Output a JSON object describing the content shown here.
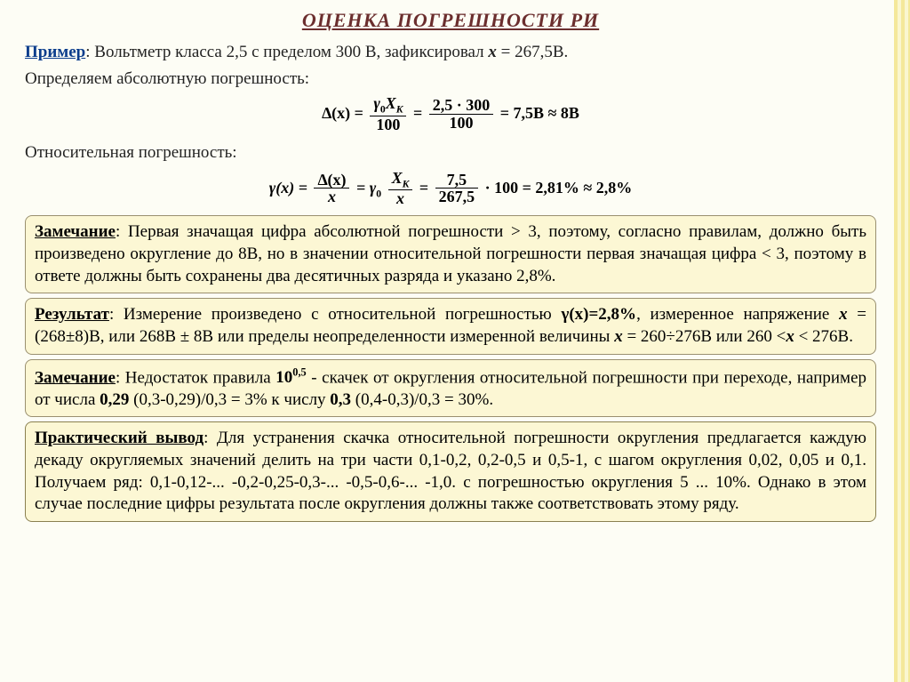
{
  "title": "ОЦЕНКА  ПОГРЕШНОСТИ РИ",
  "example_label": "Пример",
  "example_text": ": Вольтметр класса 2,5 с пределом 300 В, зафиксировал ",
  "example_var": "х",
  "example_val": " = 267,5В.",
  "abs_label": "Определяем абсолютную погрешность:",
  "rel_label": "Относительная погрешность:",
  "formula1": {
    "lhs": "∆(x) =",
    "n1": "γ",
    "n1sub": "0",
    "n1b": "X",
    "n1bsub": "K",
    "d1": "100",
    "mid": "=",
    "n2": "2,5 · 300",
    "d2": "100",
    "rhs": "= 7,5B ≈ 8B"
  },
  "formula2": {
    "lhs": "γ(x) =",
    "n1": "∆(x)",
    "d1": "x",
    "mid1": "= γ",
    "mid1sub": "0",
    "n2": "X",
    "n2sub": "K",
    "d2": "x",
    "mid2": "=",
    "n3": "7,5",
    "d3": "267,5",
    "rhs": "· 100 = 2,81% ≈ 2,8%"
  },
  "box1": {
    "label": "Замечание",
    "text": ": Первая значащая цифра абсолютной погрешности > 3, поэтому, согласно правилам, должно быть произведено округление до 8В, но в значении относительной погрешности первая значащая цифра < 3, поэтому в ответе должны быть сохранены два десятичных разряда и указано 2,8%."
  },
  "box2": {
    "label": "Результат",
    "t1": ": Измерение произведено с относительной погрешностью ",
    "b1": "γ(х)=2,8%",
    "t2": ", измеренное напряжение ",
    "b2": "х",
    "t3": " = (268±8)В, или 268В ± 8В или пределы неопределенности измеренной величины ",
    "b3": "х",
    "t4": " = 260÷276В или 260 <",
    "b4": "х",
    "t5": " < 276В."
  },
  "box3": {
    "label": "Замечание",
    "t1": ": Недостаток правила ",
    "b1": "10",
    "b1sup": "0,5",
    "t2": " - скачек от округления относительной погрешности при переходе, например от числа ",
    "b2": "0,29",
    "t3": " (0,3-0,29)/0,3 = 3% к числу ",
    "b3": "0,3",
    "t4": "  (0,4-0,3)/0,3 = 30%."
  },
  "box4": {
    "label": "Практический вывод",
    "text": ": Для устранения скачка относительной погрешности округления предлагается каждую декаду округляемых значений делить на три части 0,1-0,2, 0,2-0,5 и 0,5-1, с шагом округления 0,02, 0,05 и 0,1. Получаем ряд: 0,1-0,12-... -0,2-0,25-0,3-... -0,5-0,6-... -1,0. с погрешностью округления 5 ... 10%. Однако в этом случае последние цифры результата после округления должны также соответствовать этому ряду."
  },
  "colors": {
    "title": "#6b2e2e",
    "link": "#0b3d8c",
    "box_bg": "#fcf7d4",
    "box_border": "#9a9070",
    "page_bg": "#fdfdf5"
  }
}
